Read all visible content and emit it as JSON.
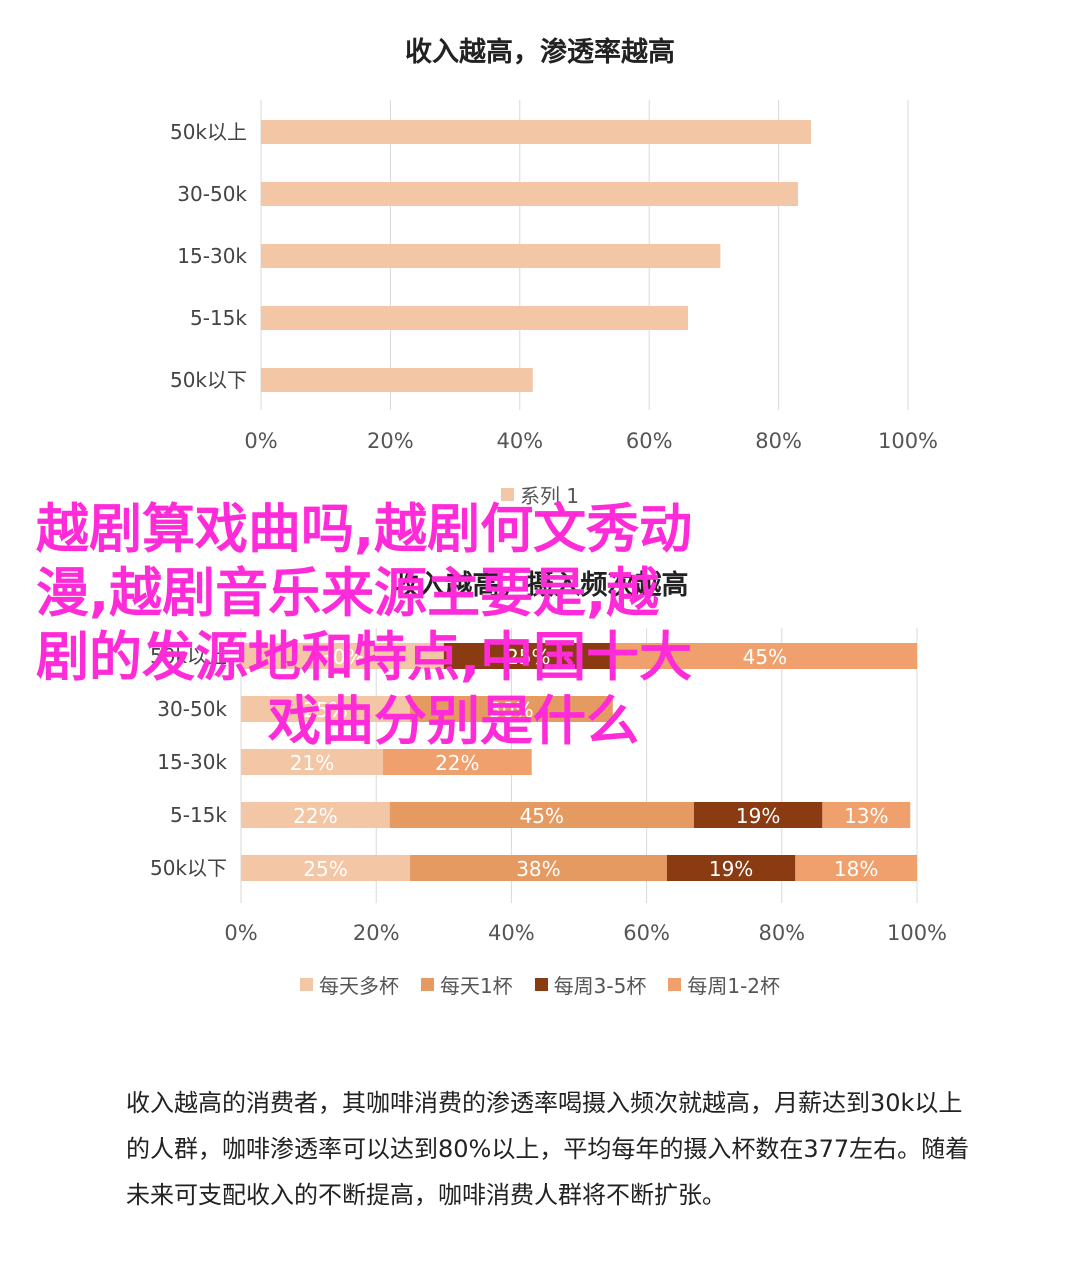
{
  "chart_data": [
    {
      "type": "bar",
      "orientation": "horizontal",
      "title": "收入越高，渗透率越高",
      "categories": [
        "50k以上",
        "30-50k",
        "15-30k",
        "5-15k",
        "50k以下"
      ],
      "series": [
        {
          "name": "系列 1",
          "values": [
            85,
            83,
            71,
            66,
            42
          ],
          "color": "#f3c6a5"
        }
      ],
      "xlim": [
        0,
        100
      ],
      "x_ticks": [
        "0%",
        "20%",
        "40%",
        "60%",
        "80%",
        "100%"
      ],
      "grid": true,
      "legend_position": "bottom"
    },
    {
      "type": "bar",
      "orientation": "horizontal",
      "stacked": true,
      "title": "收入越高，摄入频次越高",
      "categories": [
        "50k以上",
        "30-50k",
        "15-30k",
        "5-15k",
        "50k以下"
      ],
      "series": [
        {
          "name": "每天多杯",
          "values": [
            30,
            25,
            21,
            22,
            25
          ],
          "color": "#f3c6a5"
        },
        {
          "name": "每天1杯",
          "values": [
            0,
            30,
            0,
            45,
            38
          ],
          "color": "#e59a61"
        },
        {
          "name": "每周3-5杯",
          "values": [
            25,
            0,
            0,
            19,
            19
          ],
          "color": "#8b3b12"
        },
        {
          "name": "每周1-2杯",
          "values": [
            45,
            0,
            22,
            13,
            18
          ],
          "color": "#f0a06c"
        }
      ],
      "data_labels": [
        [
          "30%",
          "",
          "25%",
          "45%"
        ],
        [
          "25%",
          "30%",
          "",
          ""
        ],
        [
          "21%",
          "",
          "",
          "22%"
        ],
        [
          "22%",
          "45%",
          "19%",
          "13%"
        ],
        [
          "25%",
          "38%",
          "19%",
          "18%"
        ]
      ],
      "xlim": [
        0,
        100
      ],
      "x_ticks": [
        "0%",
        "20%",
        "40%",
        "60%",
        "80%",
        "100%"
      ],
      "grid": true,
      "legend_position": "bottom"
    }
  ],
  "overlay_lines": [
    "越剧算戏曲吗,越剧何文秀动",
    "漫,越剧音乐来源主要是,越",
    "剧的发源地和特点,中国十大",
    "戏曲分别是什么"
  ],
  "paragraph": "收入越高的消费者，其咖啡消费的渗透率喝摄入频次就越高，月薪达到30k以上的人群，咖啡渗透率可以达到80%以上，平均每年的摄入杯数在377左右。随着未来可支配收入的不断提高，咖啡消费人群将不断扩张。",
  "colors": {
    "overlay": "#ff2bd8",
    "grid": "#d9d9d9",
    "axis_text": "#555555"
  }
}
